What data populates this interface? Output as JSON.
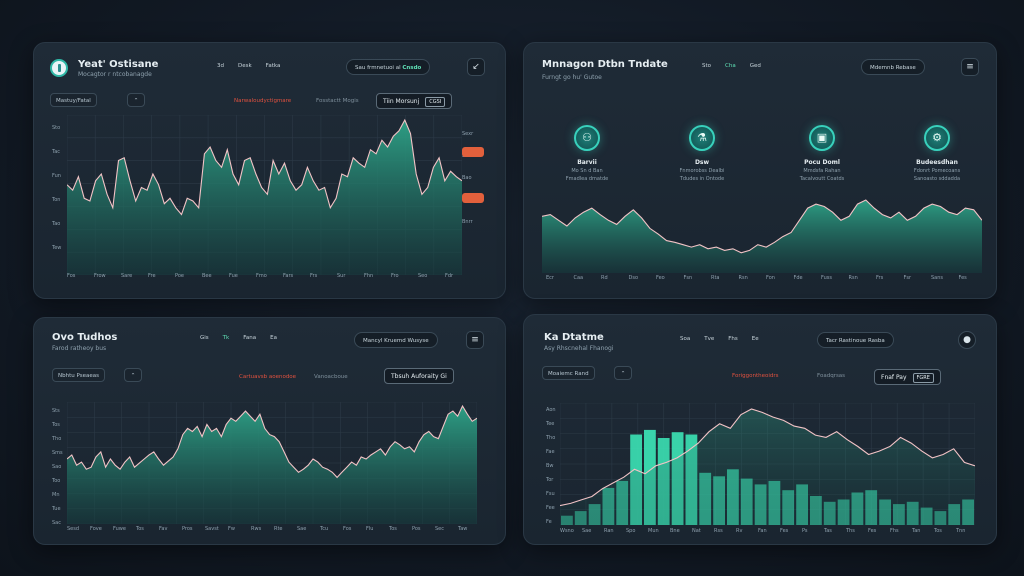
{
  "panel1": {
    "title": "Yeat' Ostisane",
    "subtitle": "Mocagtor r ntcobanagde",
    "nav": [
      "3d",
      "Desk",
      "Fatka"
    ],
    "search_pill": "Sau  frmnetuoi al",
    "search_pill_hl": "Cnsdo",
    "button": "Mastuy/Fatal",
    "alert_red": "Narwaloudyctigmare",
    "alert_dim": "Fosstactt Mogis",
    "range_label": "Tiin  Morsunj",
    "range_box": "CGSI",
    "y_labels": [
      "Sto",
      "Tac",
      "Fun",
      "Ton",
      "Tao",
      "Tew"
    ],
    "right_labels": [
      "Sexr",
      "Bedar",
      "Bao",
      "Fdis",
      "Bnrr"
    ],
    "x_labels": [
      "Fos",
      "Frow",
      "Sare",
      "Fre",
      "Poe",
      "Bee",
      "Fue",
      "Fmo",
      "Fars",
      "Frs",
      "Sur",
      "Fhn",
      "Fro",
      "Seo",
      "Fdr"
    ],
    "chart_data": {
      "type": "area",
      "values": [
        52,
        48,
        58,
        42,
        40,
        55,
        60,
        45,
        35,
        70,
        72,
        55,
        40,
        50,
        48,
        60,
        52,
        38,
        42,
        35,
        30,
        42,
        40,
        35,
        75,
        80,
        70,
        65,
        78,
        60,
        52,
        70,
        72,
        60,
        50,
        45,
        70,
        60,
        68,
        55,
        48,
        52,
        65,
        55,
        48,
        50,
        35,
        42,
        60,
        58,
        72,
        68,
        65,
        78,
        75,
        85,
        80,
        88,
        92,
        100,
        90,
        60,
        45,
        50,
        65,
        72,
        55,
        62,
        58,
        55
      ]
    }
  },
  "panel2": {
    "title": "Mnnagon Dtbn Tndate",
    "subtitle": "Furngt go hu' Gutoe",
    "nav": [
      "Sto",
      "Cha",
      "Ged"
    ],
    "search_pill": "Mdemnb  Rebase",
    "menu_icon": "≡",
    "kpis": [
      {
        "icon": "⚇",
        "label": "Barvii",
        "sub1": "Mo Sn d Ban",
        "sub2": "Fmadlea dmatde"
      },
      {
        "icon": "⚗",
        "label": "Dsw",
        "sub1": "Fnmorobss Dealbi",
        "sub2": "Tdudes in Ontode"
      },
      {
        "icon": "▣",
        "label": "Pocu Doml",
        "sub1": "Mmdsfa Rahan",
        "sub2": "Tacalvoutt Coatds"
      },
      {
        "icon": "⚙",
        "label": "Budeesdhan",
        "sub1": "Fdonrt Pomecoans",
        "sub2": "Sanoasto sddadda"
      }
    ],
    "x_labels": [
      "Ecr",
      "Caa",
      "Rd",
      "Dso",
      "Feo",
      "Fsn",
      "Rta",
      "Rsn",
      "Fon",
      "Fde",
      "Fuss",
      "Rsn",
      "Frs",
      "Fsr",
      "Sans",
      "Fes"
    ],
    "chart_data": {
      "type": "area",
      "values": [
        60,
        62,
        55,
        48,
        58,
        65,
        70,
        62,
        55,
        50,
        60,
        68,
        58,
        45,
        38,
        30,
        28,
        25,
        22,
        25,
        20,
        22,
        18,
        20,
        15,
        18,
        25,
        22,
        28,
        35,
        40,
        55,
        70,
        75,
        72,
        65,
        55,
        60,
        75,
        80,
        70,
        62,
        58,
        65,
        55,
        60,
        70,
        75,
        72,
        65,
        62,
        70,
        68,
        55
      ]
    }
  },
  "panel3": {
    "title": "Ovo Tudhos",
    "subtitle": "Farod ratheoy bus",
    "nav": [
      "Gis",
      "Tk",
      "Fana",
      "Ea"
    ],
    "search_pill": "Mancyl  Kruemd  Wusyse",
    "menu_icon": "≡",
    "button": "Nbhtu Pseaeas",
    "alert_red": "Cartuavsb aoenodoe",
    "alert_dim": "Vanoacboue",
    "range_label": "Tbsuh Auforaity Gi",
    "y_labels": [
      "Sts",
      "Tos",
      "Tho",
      "Sms",
      "Sao",
      "Too",
      "Mn",
      "Tue",
      "Sac"
    ],
    "x_labels": [
      "Sesd",
      "Fove",
      "Fuwe",
      "Tos",
      "Fav",
      "Pros",
      "Savst",
      "Fw",
      "Rws",
      "Rte",
      "Sae",
      "Tcu",
      "Fos",
      "Flu",
      "Tos",
      "Pos",
      "Sec",
      "Taw"
    ],
    "chart_data": {
      "type": "area",
      "values": [
        48,
        52,
        42,
        45,
        38,
        40,
        50,
        55,
        40,
        48,
        42,
        38,
        45,
        50,
        40,
        44,
        48,
        52,
        55,
        48,
        42,
        46,
        50,
        58,
        72,
        78,
        75,
        80,
        70,
        82,
        75,
        78,
        70,
        82,
        88,
        85,
        90,
        95,
        90,
        85,
        92,
        78,
        72,
        70,
        65,
        55,
        45,
        40,
        35,
        38,
        42,
        48,
        45,
        40,
        38,
        35,
        30,
        35,
        40,
        45,
        42,
        50,
        48,
        52,
        55,
        58,
        52,
        60,
        65,
        62,
        58,
        60,
        55,
        65,
        72,
        75,
        70,
        68,
        80,
        92,
        95,
        90,
        100,
        92,
        85,
        88
      ]
    }
  },
  "panel4": {
    "title": "Ka Dtatme",
    "subtitle": "Asy Rhscnehal Fhanogi",
    "nav": [
      "Soa",
      "Tve",
      "Fhs",
      "Ee"
    ],
    "search_pill": "Tacr Rastinoue  Rasba",
    "button": "Moaiemc Rand",
    "alert_red": "Foriggontheoidrs",
    "alert_dim": "Foadqrsas",
    "range_label": "Fnaf Pay",
    "range_box": "FGRE",
    "y_labels": [
      "Aon",
      "Tee",
      "Tho",
      "Fae",
      "Bw",
      "Tor",
      "Fsu",
      "Fee",
      "Fe"
    ],
    "x_labels": [
      "Wsno",
      "Sae",
      "Ran",
      "Spo",
      "Mun",
      "Bne",
      "Nat",
      "Rss",
      "Rv",
      "Fan",
      "Fes",
      "Ps",
      "Tas",
      "Ths",
      "Fes",
      "Fhs",
      "Tan",
      "Tos",
      "Tnn"
    ],
    "chart_data": {
      "type": "bar",
      "bars": [
        8,
        12,
        18,
        32,
        38,
        78,
        82,
        75,
        80,
        78,
        45,
        42,
        48,
        40,
        35,
        38,
        30,
        35,
        25,
        20,
        22,
        28,
        30,
        22,
        18,
        20,
        15,
        12,
        18,
        22
      ],
      "line": [
        10,
        12,
        15,
        18,
        25,
        30,
        35,
        42,
        38,
        45,
        48,
        52,
        58,
        65,
        75,
        82,
        78,
        90,
        95,
        92,
        88,
        85,
        80,
        78,
        72,
        70,
        75,
        68,
        62,
        55,
        58,
        62,
        70,
        65,
        58,
        52,
        55,
        60,
        48,
        45
      ]
    }
  },
  "colors": {
    "accent": "#3fd6b0",
    "line": "#f2c3c6",
    "alert": "#e2523f",
    "orange": "#e2603c",
    "panel": "#1d2833"
  }
}
